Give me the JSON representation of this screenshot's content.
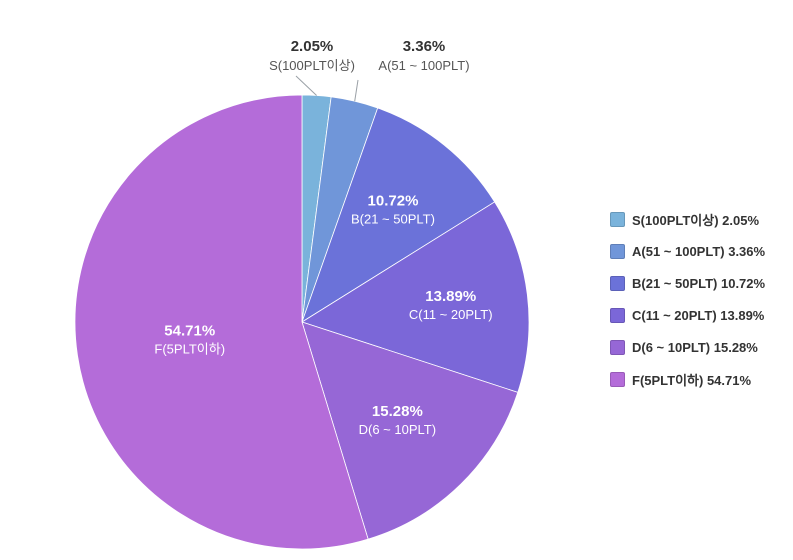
{
  "chart_data": {
    "type": "pie",
    "slices": [
      {
        "label": "S(100PLT이상)",
        "percent_label": "2.05%",
        "value": 2.05,
        "color": "#7AB3DB",
        "legend_label": "S(100PLT이상) 2.05%"
      },
      {
        "label": "A(51 ~ 100PLT)",
        "percent_label": "3.36%",
        "value": 3.36,
        "color": "#7096D9",
        "legend_label": "A(51 ~ 100PLT) 3.36%"
      },
      {
        "label": "B(21 ~ 50PLT)",
        "percent_label": "10.72%",
        "value": 10.72,
        "color": "#6B72D9",
        "legend_label": "B(21 ~ 50PLT) 10.72%"
      },
      {
        "label": "C(11 ~ 20PLT)",
        "percent_label": "13.89%",
        "value": 13.89,
        "color": "#7B67D8",
        "legend_label": "C(11 ~ 20PLT) 13.89%"
      },
      {
        "label": "D(6 ~ 10PLT)",
        "percent_label": "15.28%",
        "value": 15.28,
        "color": "#9667D6",
        "legend_label": "D(6 ~ 10PLT) 15.28%"
      },
      {
        "label": "F(5PLT이하)",
        "percent_label": "54.71%",
        "value": 54.71,
        "color": "#B46CD9",
        "legend_label": "F(5PLT이하) 54.71%"
      }
    ],
    "legend_position": "right"
  }
}
